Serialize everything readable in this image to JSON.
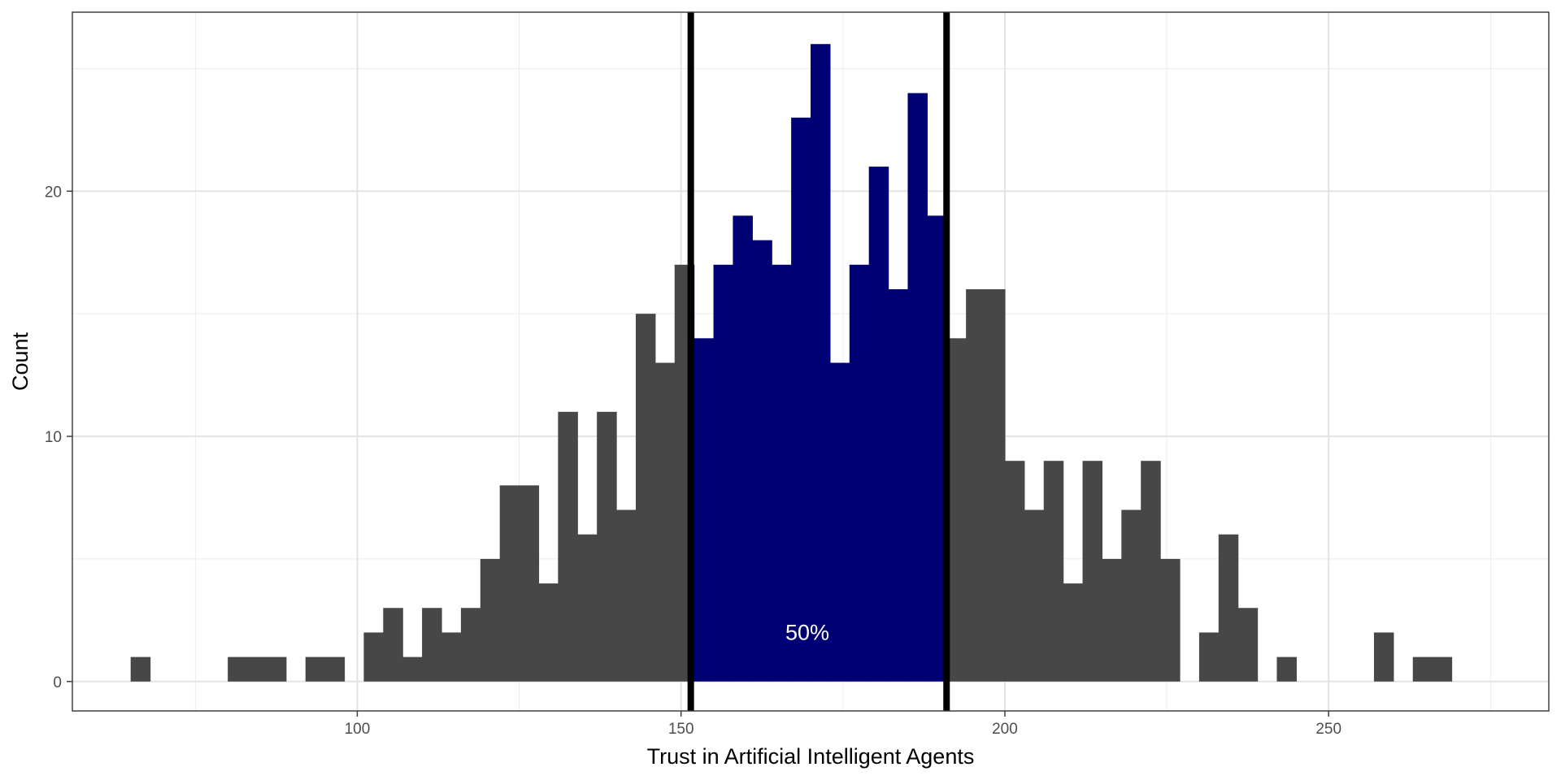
{
  "chart_data": {
    "type": "bar",
    "subtype": "histogram",
    "xlabel": "Trust in Artificial Intelligent Agents",
    "ylabel": "Count",
    "xlim": [
      56,
      284
    ],
    "ylim": [
      -1.2,
      27.3
    ],
    "x_ticks": [
      100,
      150,
      200,
      250
    ],
    "x_tick_labels": [
      "100",
      "150",
      "200",
      "250"
    ],
    "y_ticks": [
      0,
      10,
      20
    ],
    "y_tick_labels": [
      "0",
      "10",
      "20"
    ],
    "grid": true,
    "bin_start": 65,
    "bin_width": 3,
    "counts": [
      1,
      0,
      0,
      0,
      0,
      1,
      1,
      1,
      0,
      1,
      1,
      0,
      2,
      3,
      1,
      3,
      2,
      3,
      5,
      8,
      8,
      4,
      11,
      6,
      11,
      7,
      15,
      13,
      17,
      14,
      17,
      19,
      18,
      17,
      23,
      26,
      13,
      17,
      21,
      16,
      24,
      19,
      14,
      16,
      16,
      9,
      7,
      9,
      4,
      9,
      5,
      7,
      9,
      5,
      0,
      2,
      6,
      3,
      0,
      1,
      0,
      0,
      0,
      0,
      2,
      0,
      1,
      1
    ],
    "highlight_range": [
      151.5,
      191
    ],
    "colors": {
      "default_bar": "#474747",
      "highlight_bar": "#000075",
      "reference_line": "#000000"
    },
    "reference_lines": [
      151.5,
      191
    ],
    "annotations": [
      {
        "text": "50%",
        "x": 169.5,
        "y": 2
      }
    ]
  }
}
